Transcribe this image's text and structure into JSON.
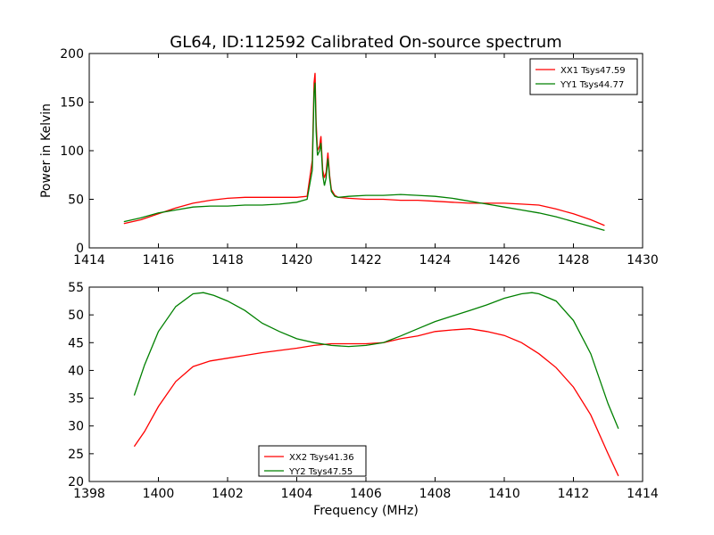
{
  "figure": {
    "title": "GL64, ID:112592 Calibrated On-source spectrum"
  },
  "chart_data": [
    {
      "type": "line",
      "ylabel": "Power in Kelvin",
      "xlabel": "",
      "xlim": [
        1414,
        1430
      ],
      "ylim": [
        0,
        200
      ],
      "xticks": [
        1414,
        1416,
        1418,
        1420,
        1422,
        1424,
        1426,
        1428,
        1430
      ],
      "yticks": [
        0,
        50,
        100,
        150,
        200
      ],
      "legend_position": "top-right",
      "series": [
        {
          "name": "XX1 Tsys47.59",
          "color": "#ff0000",
          "points": [
            [
              1415.0,
              25
            ],
            [
              1415.5,
              29
            ],
            [
              1416.0,
              35
            ],
            [
              1416.5,
              41
            ],
            [
              1417.0,
              46
            ],
            [
              1417.5,
              49
            ],
            [
              1418.0,
              51
            ],
            [
              1418.5,
              52
            ],
            [
              1419.0,
              52
            ],
            [
              1419.5,
              52
            ],
            [
              1420.0,
              52
            ],
            [
              1420.3,
              53
            ],
            [
              1420.45,
              90
            ],
            [
              1420.5,
              170
            ],
            [
              1420.53,
              180
            ],
            [
              1420.56,
              130
            ],
            [
              1420.6,
              100
            ],
            [
              1420.66,
              105
            ],
            [
              1420.7,
              115
            ],
            [
              1420.75,
              80
            ],
            [
              1420.8,
              72
            ],
            [
              1420.85,
              78
            ],
            [
              1420.9,
              98
            ],
            [
              1420.95,
              75
            ],
            [
              1421.0,
              60
            ],
            [
              1421.1,
              54
            ],
            [
              1421.2,
              52
            ],
            [
              1421.5,
              51
            ],
            [
              1422.0,
              50
            ],
            [
              1422.5,
              50
            ],
            [
              1423.0,
              49
            ],
            [
              1423.5,
              49
            ],
            [
              1424.0,
              48
            ],
            [
              1424.5,
              47
            ],
            [
              1425.0,
              46
            ],
            [
              1425.5,
              46
            ],
            [
              1426.0,
              46
            ],
            [
              1426.5,
              45
            ],
            [
              1427.0,
              44
            ],
            [
              1427.5,
              40
            ],
            [
              1428.0,
              35
            ],
            [
              1428.5,
              29
            ],
            [
              1428.9,
              23
            ]
          ]
        },
        {
          "name": "YY1 Tsys44.77",
          "color": "#008000",
          "points": [
            [
              1415.0,
              27
            ],
            [
              1415.5,
              31
            ],
            [
              1416.0,
              36
            ],
            [
              1416.5,
              39
            ],
            [
              1417.0,
              42
            ],
            [
              1417.5,
              43
            ],
            [
              1418.0,
              43
            ],
            [
              1418.5,
              44
            ],
            [
              1419.0,
              44
            ],
            [
              1419.5,
              45
            ],
            [
              1420.0,
              47
            ],
            [
              1420.3,
              50
            ],
            [
              1420.45,
              80
            ],
            [
              1420.5,
              160
            ],
            [
              1420.53,
              170
            ],
            [
              1420.56,
              120
            ],
            [
              1420.6,
              95
            ],
            [
              1420.66,
              100
            ],
            [
              1420.7,
              108
            ],
            [
              1420.75,
              75
            ],
            [
              1420.8,
              64
            ],
            [
              1420.85,
              72
            ],
            [
              1420.9,
              92
            ],
            [
              1420.95,
              72
            ],
            [
              1421.0,
              58
            ],
            [
              1421.1,
              53
            ],
            [
              1421.2,
              52
            ],
            [
              1421.5,
              53
            ],
            [
              1422.0,
              54
            ],
            [
              1422.5,
              54
            ],
            [
              1423.0,
              55
            ],
            [
              1423.5,
              54
            ],
            [
              1424.0,
              53
            ],
            [
              1424.5,
              51
            ],
            [
              1425.0,
              48
            ],
            [
              1425.5,
              45
            ],
            [
              1426.0,
              42
            ],
            [
              1426.5,
              39
            ],
            [
              1427.0,
              36
            ],
            [
              1427.5,
              32
            ],
            [
              1428.0,
              27
            ],
            [
              1428.5,
              22
            ],
            [
              1428.9,
              18
            ]
          ]
        }
      ]
    },
    {
      "type": "line",
      "ylabel": "",
      "xlabel": "Frequency (MHz)",
      "xlim": [
        1398,
        1414
      ],
      "ylim": [
        20,
        55
      ],
      "xticks": [
        1398,
        1400,
        1402,
        1404,
        1406,
        1408,
        1410,
        1412,
        1414
      ],
      "yticks": [
        20,
        25,
        30,
        35,
        40,
        45,
        50,
        55
      ],
      "legend_position": "bottom-center",
      "series": [
        {
          "name": "XX2 Tsys41.36",
          "color": "#ff0000",
          "points": [
            [
              1399.3,
              26.3
            ],
            [
              1399.6,
              29
            ],
            [
              1400.0,
              33.5
            ],
            [
              1400.5,
              38
            ],
            [
              1401.0,
              40.7
            ],
            [
              1401.5,
              41.7
            ],
            [
              1402.0,
              42.2
            ],
            [
              1402.5,
              42.7
            ],
            [
              1403.0,
              43.2
            ],
            [
              1403.5,
              43.6
            ],
            [
              1404.0,
              44
            ],
            [
              1404.5,
              44.5
            ],
            [
              1405.0,
              44.8
            ],
            [
              1405.5,
              44.8
            ],
            [
              1406.0,
              44.8
            ],
            [
              1406.5,
              45
            ],
            [
              1407.0,
              45.7
            ],
            [
              1407.5,
              46.2
            ],
            [
              1408.0,
              47
            ],
            [
              1408.5,
              47.3
            ],
            [
              1409.0,
              47.5
            ],
            [
              1409.5,
              47
            ],
            [
              1410.0,
              46.3
            ],
            [
              1410.5,
              45
            ],
            [
              1411.0,
              43
            ],
            [
              1411.5,
              40.5
            ],
            [
              1412.0,
              37
            ],
            [
              1412.5,
              32
            ],
            [
              1413.0,
              25
            ],
            [
              1413.3,
              21
            ]
          ]
        },
        {
          "name": "YY2 Tsys47.55",
          "color": "#008000",
          "points": [
            [
              1399.3,
              35.5
            ],
            [
              1399.6,
              41
            ],
            [
              1400.0,
              47
            ],
            [
              1400.5,
              51.5
            ],
            [
              1401.0,
              53.8
            ],
            [
              1401.3,
              54
            ],
            [
              1401.6,
              53.5
            ],
            [
              1402.0,
              52.5
            ],
            [
              1402.5,
              50.8
            ],
            [
              1403.0,
              48.5
            ],
            [
              1403.5,
              47
            ],
            [
              1404.0,
              45.7
            ],
            [
              1404.5,
              45
            ],
            [
              1405.0,
              44.5
            ],
            [
              1405.5,
              44.3
            ],
            [
              1406.0,
              44.5
            ],
            [
              1406.5,
              45
            ],
            [
              1407.0,
              46.2
            ],
            [
              1407.5,
              47.5
            ],
            [
              1408.0,
              48.8
            ],
            [
              1408.5,
              49.8
            ],
            [
              1409.0,
              50.8
            ],
            [
              1409.5,
              51.8
            ],
            [
              1410.0,
              53
            ],
            [
              1410.5,
              53.8
            ],
            [
              1410.8,
              54
            ],
            [
              1411.0,
              53.8
            ],
            [
              1411.5,
              52.5
            ],
            [
              1412.0,
              49
            ],
            [
              1412.5,
              43
            ],
            [
              1413.0,
              34
            ],
            [
              1413.3,
              29.5
            ]
          ]
        }
      ]
    }
  ]
}
